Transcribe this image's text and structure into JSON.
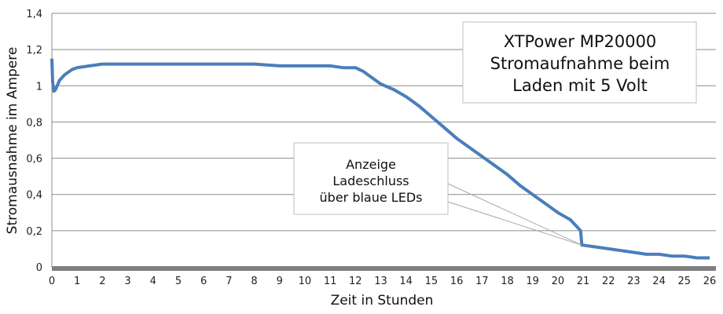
{
  "chart_data": {
    "type": "line",
    "title_lines": [
      "XTPower MP20000",
      "Stromaufnahme beim",
      "Laden mit 5 Volt"
    ],
    "xlabel": "Zeit in Stunden",
    "ylabel": "Stromausnahme im Ampere",
    "xlim": [
      0,
      26
    ],
    "ylim": [
      0,
      1.4
    ],
    "x_ticks": [
      "0",
      "1",
      "2",
      "3",
      "4",
      "5",
      "6",
      "7",
      "8",
      "9",
      "10",
      "11",
      "12",
      "13",
      "14",
      "15",
      "16",
      "17",
      "18",
      "19",
      "20",
      "21",
      "22",
      "23",
      "24",
      "25",
      "26"
    ],
    "y_ticks": [
      "0",
      "0,2",
      "0,4",
      "0,6",
      "0,8",
      "1",
      "1,2",
      "1,4"
    ],
    "grid": true,
    "series": [
      {
        "color": "#4a7ebb",
        "x": [
          0,
          0.03,
          0.08,
          0.15,
          0.3,
          0.5,
          0.8,
          1,
          1.5,
          2,
          3,
          4,
          5,
          6,
          7,
          8,
          9,
          10,
          11,
          11.5,
          12,
          12.3,
          12.6,
          13,
          13.5,
          14,
          14.5,
          15,
          15.5,
          16,
          16.5,
          17,
          17.5,
          18,
          18.5,
          19,
          19.5,
          20,
          20.5,
          20.9,
          20.95,
          21,
          21.5,
          22,
          22.5,
          23,
          23.5,
          24,
          24.5,
          25,
          25.5,
          26
        ],
        "y": [
          1.15,
          1.02,
          0.97,
          0.98,
          1.03,
          1.06,
          1.09,
          1.1,
          1.11,
          1.12,
          1.12,
          1.12,
          1.12,
          1.12,
          1.12,
          1.12,
          1.11,
          1.11,
          1.11,
          1.1,
          1.1,
          1.08,
          1.05,
          1.01,
          0.98,
          0.94,
          0.89,
          0.83,
          0.77,
          0.71,
          0.66,
          0.61,
          0.56,
          0.51,
          0.45,
          0.4,
          0.35,
          0.3,
          0.26,
          0.2,
          0.12,
          0.12,
          0.11,
          0.1,
          0.09,
          0.08,
          0.07,
          0.07,
          0.06,
          0.06,
          0.05,
          0.05
        ]
      }
    ],
    "annotation": {
      "lines": [
        "Anzeige",
        "Ladeschluss",
        "über blaue LEDs"
      ],
      "points_to_x": 20.95,
      "points_to_y": 0.12
    }
  }
}
